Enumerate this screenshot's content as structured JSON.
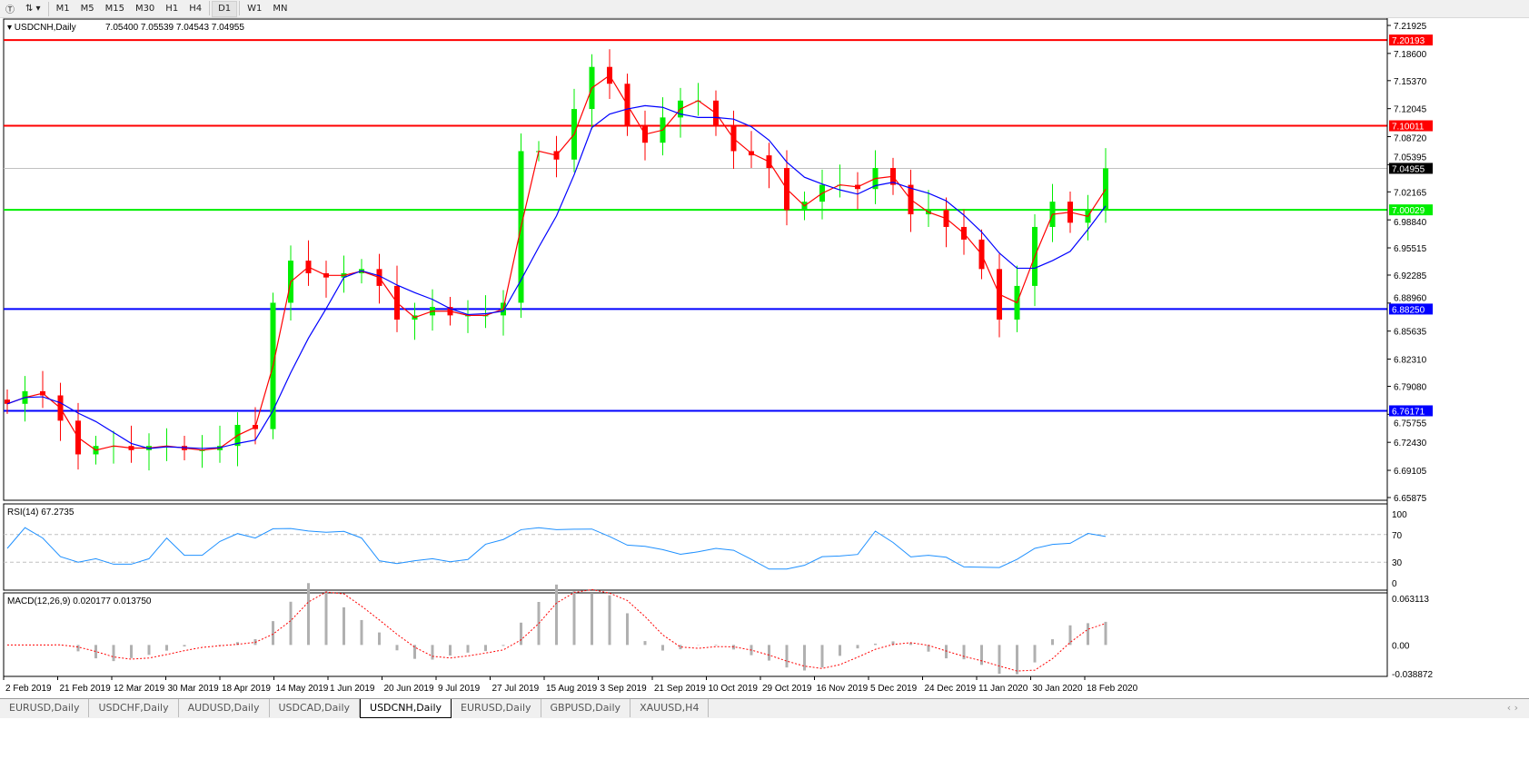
{
  "toolbar": {
    "timeframes": [
      "M1",
      "M5",
      "M15",
      "M30",
      "H1",
      "H4",
      "D1",
      "W1",
      "MN"
    ],
    "active": "D1"
  },
  "chart_header": {
    "symbol": "USDCNH,Daily",
    "ohlc": "7.05400 7.05539 7.04543 7.04955"
  },
  "price_scale": {
    "ticks": [
      "7.21925",
      "7.18600",
      "7.15370",
      "7.12045",
      "7.08720",
      "7.05395",
      "7.02165",
      "6.98840",
      "6.95515",
      "6.92285",
      "6.88960",
      "6.85635",
      "6.82310",
      "6.79080",
      "6.75755",
      "6.72430",
      "6.69105",
      "6.65875"
    ],
    "range": [
      6.65875,
      7.21925
    ]
  },
  "levels": [
    {
      "price": 7.20193,
      "label": "7.20193",
      "color": "#ff0000"
    },
    {
      "price": 7.10011,
      "label": "7.10011",
      "color": "#ff0000"
    },
    {
      "price": 7.04955,
      "label": "7.04955",
      "color": "#000000",
      "current": true
    },
    {
      "price": 7.00029,
      "label": "7.00029",
      "color": "#00ee00"
    },
    {
      "price": 6.8825,
      "label": "6.88250",
      "color": "#0000ff"
    },
    {
      "price": 6.76171,
      "label": "6.76171",
      "color": "#0000ff"
    }
  ],
  "rsi": {
    "label": "RSI(14) 67.2735",
    "ticks": [
      "100",
      "70",
      "30",
      "0"
    ],
    "color": "#1e90ff"
  },
  "macd": {
    "label": "MACD(12,26,9) 0.020177 0.013750",
    "ticks": [
      "0.063113",
      "0.00",
      "-0.038872"
    ],
    "signal_color": "#ff0000"
  },
  "time_axis": [
    "2 Feb 2019",
    "21 Feb 2019",
    "12 Mar 2019",
    "30 Mar 2019",
    "18 Apr 2019",
    "14 May 2019",
    "1 Jun 2019",
    "20 Jun 2019",
    "9 Jul 2019",
    "27 Jul 2019",
    "15 Aug 2019",
    "3 Sep 2019",
    "21 Sep 2019",
    "10 Oct 2019",
    "29 Oct 2019",
    "16 Nov 2019",
    "5 Dec 2019",
    "24 Dec 2019",
    "11 Jan 2020",
    "30 Jan 2020",
    "18 Feb 2020"
  ],
  "tabs": [
    "EURUSD,Daily",
    "USDCHF,Daily",
    "AUDUSD,Daily",
    "USDCAD,Daily",
    "USDCNH,Daily",
    "EURUSD,Daily",
    "GBPUSD,Daily",
    "XAUUSD,H4"
  ],
  "active_tab": "USDCNH,Daily",
  "chart_data": {
    "type": "candlestick",
    "bull_color": "#00ee00",
    "bear_color": "#ff0000",
    "ma_fast_color": "#ff0000",
    "ma_slow_color": "#0000ff",
    "weekly_closes": [
      6.77,
      6.785,
      6.78,
      6.75,
      6.71,
      6.72,
      6.72,
      6.715,
      6.72,
      6.72,
      6.715,
      6.715,
      6.72,
      6.745,
      6.74,
      6.89,
      6.94,
      6.925,
      6.92,
      6.925,
      6.93,
      6.91,
      6.87,
      6.875,
      6.885,
      6.875,
      6.875,
      6.875,
      6.89,
      7.07,
      7.07,
      7.06,
      7.12,
      7.17,
      7.15,
      7.1,
      7.08,
      7.11,
      7.13,
      7.13,
      7.1,
      7.07,
      7.065,
      7.05,
      7.0,
      7.01,
      7.03,
      7.03,
      7.025,
      7.05,
      7.03,
      6.995,
      7.0,
      6.98,
      6.965,
      6.93,
      6.87,
      6.91,
      6.98,
      7.01,
      6.985,
      7.0,
      7.04955
    ]
  }
}
